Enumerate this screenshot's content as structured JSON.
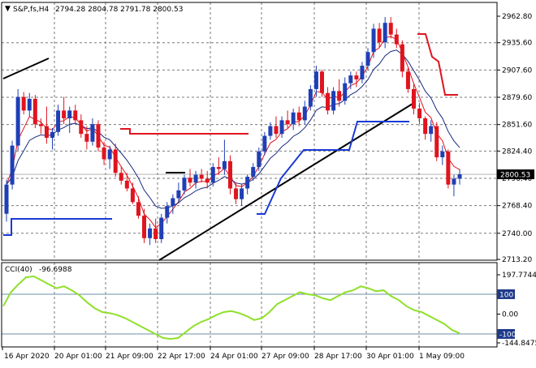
{
  "header": {
    "symbol": "S&P,fs,H4",
    "ohlc": "2794.28 2804.78 2791.78 2800.53"
  },
  "cci_header": {
    "label": "CCI(40)",
    "value": "-96.6988"
  },
  "price_axis": {
    "ticks": [
      "2962.80",
      "2935.60",
      "2907.60",
      "2879.60",
      "2851.60",
      "2824.40",
      "2796.40",
      "2768.40",
      "2740.00",
      "2713.20"
    ],
    "tick_values": [
      2962.8,
      2935.6,
      2907.6,
      2879.6,
      2851.6,
      2824.4,
      2796.4,
      2768.4,
      2740.0,
      2713.2
    ],
    "current_label": "2800.53",
    "current_value": 2800.53
  },
  "cci_axis": {
    "ticks": [
      "197.7744",
      "100",
      "0.00",
      "-100",
      "-144.8475"
    ],
    "tick_values": [
      197.7744,
      100,
      0,
      -100,
      -144.8475
    ],
    "boxed": [
      "100",
      "-100"
    ]
  },
  "time_axis": {
    "labels": [
      "16 Apr 2020",
      "20 Apr 01:00",
      "21 Apr 09:00",
      "22 Apr 17:00",
      "24 Apr 01:00",
      "27 Apr 09:00",
      "28 Apr 17:00",
      "30 Apr 01:00",
      "1 May 09:00"
    ]
  },
  "colors": {
    "bull": "#1f3fb5",
    "bear": "#e0141e",
    "ma_fast": "#e0141e",
    "ma_slow": "#1a2a80",
    "support": "#1a3ad6",
    "resistance": "#e0141e",
    "trend": "#000000",
    "cci": "#8fe02a",
    "level": "#6a8fa8"
  },
  "chart_data": [
    {
      "type": "candlestick",
      "title": "S&P,fs,H4",
      "ylim": [
        2713.2,
        2962.8
      ],
      "candles": [
        [
          2760,
          2795,
          2752,
          2790
        ],
        [
          2790,
          2835,
          2785,
          2830
        ],
        [
          2830,
          2888,
          2825,
          2880
        ],
        [
          2880,
          2885,
          2862,
          2866
        ],
        [
          2866,
          2884,
          2860,
          2878
        ],
        [
          2878,
          2882,
          2848,
          2852
        ],
        [
          2852,
          2858,
          2842,
          2850
        ],
        [
          2850,
          2870,
          2832,
          2838
        ],
        [
          2838,
          2848,
          2826,
          2844
        ],
        [
          2844,
          2872,
          2840,
          2866
        ],
        [
          2866,
          2880,
          2852,
          2858
        ],
        [
          2858,
          2870,
          2843,
          2866
        ],
        [
          2866,
          2872,
          2853,
          2856
        ],
        [
          2856,
          2862,
          2838,
          2842
        ],
        [
          2842,
          2850,
          2826,
          2834
        ],
        [
          2834,
          2858,
          2830,
          2852
        ],
        [
          2852,
          2856,
          2824,
          2828
        ],
        [
          2828,
          2834,
          2810,
          2816
        ],
        [
          2816,
          2830,
          2806,
          2826
        ],
        [
          2826,
          2832,
          2798,
          2802
        ],
        [
          2802,
          2808,
          2790,
          2794
        ],
        [
          2794,
          2802,
          2783,
          2786
        ],
        [
          2786,
          2792,
          2770,
          2772
        ],
        [
          2772,
          2778,
          2755,
          2758
        ],
        [
          2758,
          2765,
          2730,
          2735
        ],
        [
          2735,
          2750,
          2728,
          2745
        ],
        [
          2745,
          2755,
          2730,
          2734
        ],
        [
          2734,
          2760,
          2730,
          2756
        ],
        [
          2756,
          2772,
          2750,
          2768
        ],
        [
          2768,
          2780,
          2760,
          2776
        ],
        [
          2776,
          2792,
          2772,
          2784
        ],
        [
          2784,
          2800,
          2780,
          2797
        ],
        [
          2797,
          2806,
          2788,
          2792
        ],
        [
          2792,
          2804,
          2786,
          2800
        ],
        [
          2800,
          2806,
          2792,
          2796
        ],
        [
          2796,
          2804,
          2786,
          2792
        ],
        [
          2792,
          2812,
          2788,
          2808
        ],
        [
          2808,
          2818,
          2800,
          2806
        ],
        [
          2806,
          2836,
          2800,
          2814
        ],
        [
          2814,
          2820,
          2780,
          2786
        ],
        [
          2786,
          2792,
          2770,
          2775
        ],
        [
          2775,
          2790,
          2768,
          2786
        ],
        [
          2786,
          2800,
          2780,
          2798
        ],
        [
          2798,
          2812,
          2794,
          2808
        ],
        [
          2808,
          2828,
          2804,
          2824
        ],
        [
          2824,
          2844,
          2820,
          2840
        ],
        [
          2840,
          2854,
          2836,
          2850
        ],
        [
          2850,
          2860,
          2838,
          2842
        ],
        [
          2842,
          2860,
          2838,
          2856
        ],
        [
          2856,
          2866,
          2848,
          2852
        ],
        [
          2852,
          2868,
          2846,
          2864
        ],
        [
          2864,
          2870,
          2850,
          2856
        ],
        [
          2856,
          2876,
          2852,
          2870
        ],
        [
          2870,
          2892,
          2866,
          2888
        ],
        [
          2888,
          2912,
          2880,
          2906
        ],
        [
          2906,
          2908,
          2880,
          2884
        ],
        [
          2884,
          2890,
          2862,
          2866
        ],
        [
          2866,
          2890,
          2862,
          2886
        ],
        [
          2886,
          2898,
          2870,
          2876
        ],
        [
          2876,
          2900,
          2872,
          2894
        ],
        [
          2894,
          2906,
          2888,
          2902
        ],
        [
          2902,
          2906,
          2890,
          2898
        ],
        [
          2898,
          2916,
          2894,
          2912
        ],
        [
          2912,
          2930,
          2908,
          2926
        ],
        [
          2926,
          2955,
          2920,
          2950
        ],
        [
          2950,
          2956,
          2930,
          2936
        ],
        [
          2936,
          2962,
          2930,
          2956
        ],
        [
          2956,
          2962,
          2940,
          2944
        ],
        [
          2944,
          2950,
          2930,
          2934
        ],
        [
          2934,
          2938,
          2900,
          2906
        ],
        [
          2906,
          2910,
          2884,
          2888
        ],
        [
          2888,
          2894,
          2862,
          2868
        ],
        [
          2868,
          2874,
          2852,
          2858
        ],
        [
          2858,
          2860,
          2836,
          2842
        ],
        [
          2842,
          2856,
          2834,
          2850
        ],
        [
          2850,
          2854,
          2814,
          2818
        ],
        [
          2818,
          2830,
          2810,
          2824
        ],
        [
          2824,
          2826,
          2786,
          2790
        ],
        [
          2790,
          2800,
          2778,
          2796
        ],
        [
          2796,
          2806,
          2790,
          2800.53
        ]
      ]
    },
    {
      "type": "line",
      "title": "CCI(40)",
      "ylim": [
        -144.8475,
        197.7744
      ],
      "series": [
        {
          "values": [
            40,
            110,
            150,
            185,
            190,
            170,
            150,
            130,
            140,
            120,
            95,
            60,
            30,
            10,
            5,
            -5,
            -20,
            -40,
            -60,
            -80,
            -100,
            -120,
            -125,
            -120,
            -90,
            -60,
            -40,
            -25,
            -5,
            10,
            15,
            5,
            -10,
            -30,
            -20,
            10,
            50,
            70,
            90,
            110,
            100,
            95,
            80,
            70,
            90,
            110,
            120,
            140,
            130,
            115,
            120,
            90,
            70,
            40,
            20,
            10,
            -10,
            -30,
            -50,
            -80,
            -96.6988
          ]
        }
      ]
    }
  ]
}
